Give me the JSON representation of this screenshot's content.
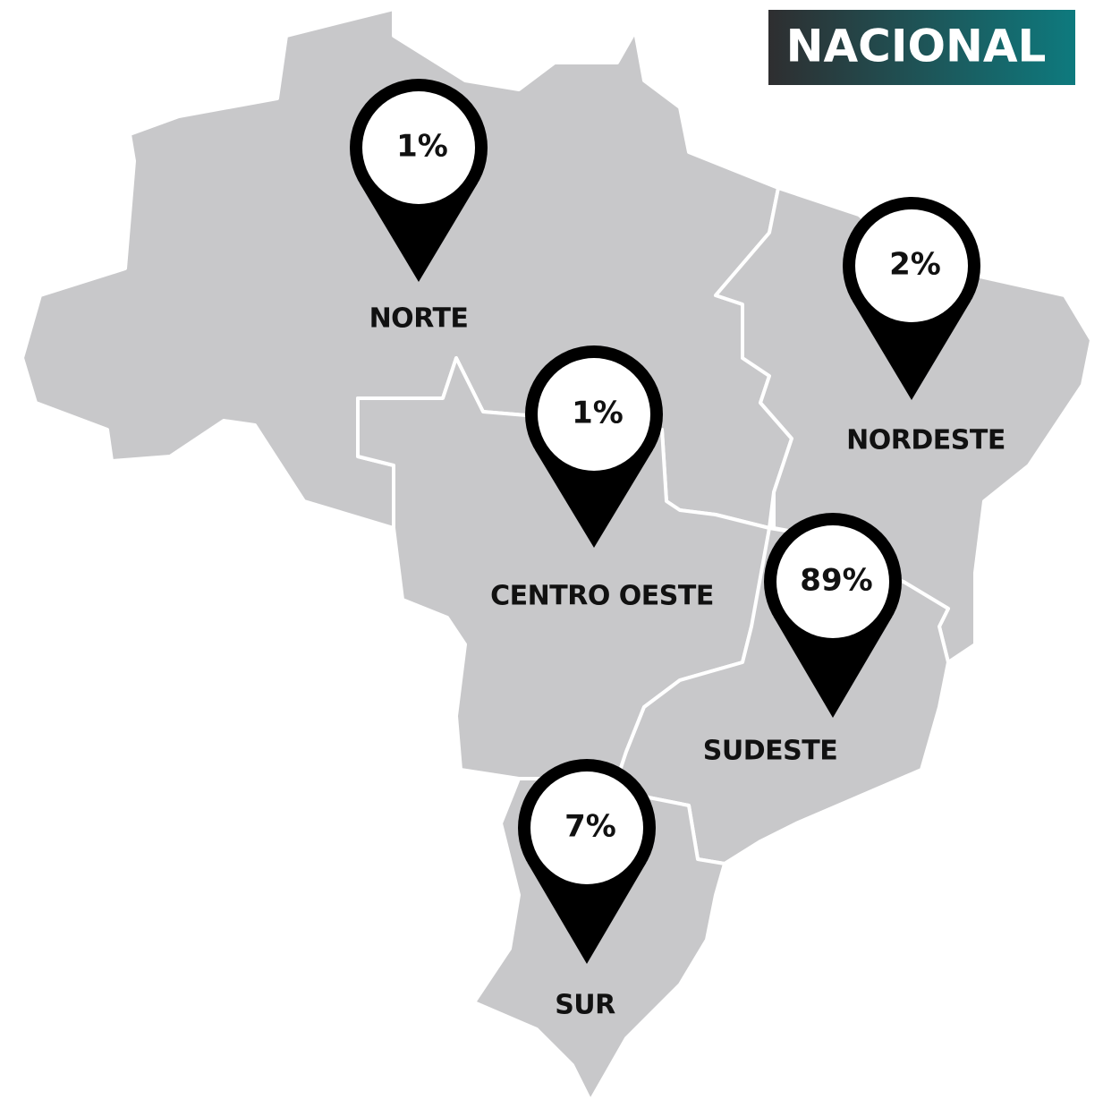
{
  "title": "NACIONAL",
  "regions": [
    {
      "name": "NORTE",
      "value": "1%"
    },
    {
      "name": "NORDESTE",
      "value": "2%"
    },
    {
      "name": "CENTRO OESTE",
      "value": "1%"
    },
    {
      "name": "SUDESTE",
      "value": "89%"
    },
    {
      "name": "SUR",
      "value": "7%"
    }
  ]
}
